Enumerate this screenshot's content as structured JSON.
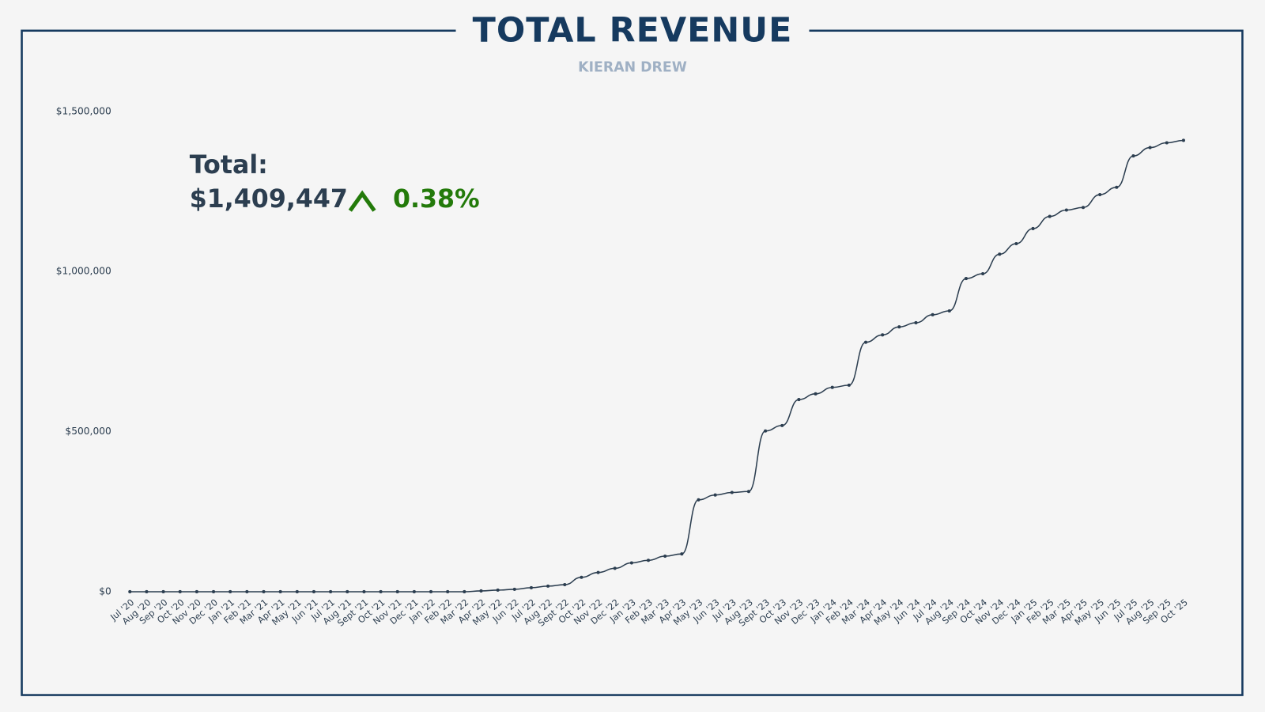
{
  "chart_data": {
    "type": "line",
    "title": "TOTAL REVENUE",
    "subtitle": "KIERAN DREW",
    "annotations": {
      "total_label": "Total:",
      "total_value": "$1,409,447",
      "change": "0.38%"
    },
    "categories": [
      "Jul '20",
      "Aug '20",
      "Sep '20",
      "Oct '20",
      "Nov '20",
      "Dec '20",
      "Jan '21",
      "Feb '21",
      "Mar '21",
      "Apr '21",
      "May '21",
      "Jun '21",
      "Jul '21",
      "Aug '21",
      "Sept '21",
      "Oct '21",
      "Nov '21",
      "Dec '21",
      "Jan '22",
      "Feb '22",
      "Mar '22",
      "Apr '22",
      "May '22",
      "Jun '22",
      "Jul '22",
      "Aug '22",
      "Sept '22",
      "Oct '22",
      "Nov '22",
      "Dec '22",
      "Jan '23",
      "Feb '23",
      "Mar '23",
      "Apr '23",
      "May '23",
      "Jun '23",
      "Jul '23",
      "Aug '23",
      "Sept '23",
      "Oct '23",
      "Nov '23",
      "Dec '23",
      "Jan '24",
      "Feb '24",
      "Mar '24",
      "Apr '24",
      "May '24",
      "Jun '24",
      "Jul '24",
      "Aug '24",
      "Sep '24",
      "Oct '24",
      "Nov '24",
      "Dec '24",
      "Jan '25",
      "Feb '25",
      "Mar '25",
      "Apr '25",
      "May '25",
      "Jun '25",
      "Jul '25",
      "Aug '25",
      "Sep '25",
      "Oct '25"
    ],
    "values": [
      0,
      0,
      0,
      0,
      0,
      0,
      0,
      0,
      0,
      0,
      0,
      0,
      0,
      0,
      0,
      0,
      0,
      0,
      0,
      0,
      0,
      2500,
      5000,
      7500,
      12500,
      17500,
      22000,
      45000,
      60000,
      73000,
      90000,
      98000,
      111000,
      118000,
      287000,
      302000,
      310000,
      313000,
      502000,
      519000,
      600000,
      618000,
      638000,
      645000,
      779000,
      802000,
      827000,
      840000,
      865000,
      877000,
      978000,
      993000,
      1054000,
      1087000,
      1134000,
      1172000,
      1192000,
      1200000,
      1240000,
      1263000,
      1361000,
      1387000,
      1402000,
      1409447
    ],
    "color": "#2c3e50",
    "ylim": [
      0,
      1500000
    ],
    "yticks": [
      {
        "value": 0,
        "label": "$0"
      },
      {
        "value": 500000,
        "label": "$500,000"
      },
      {
        "value": 1000000,
        "label": "$1,000,000"
      },
      {
        "value": 1500000,
        "label": "$1,500,000"
      }
    ],
    "grid": false
  }
}
